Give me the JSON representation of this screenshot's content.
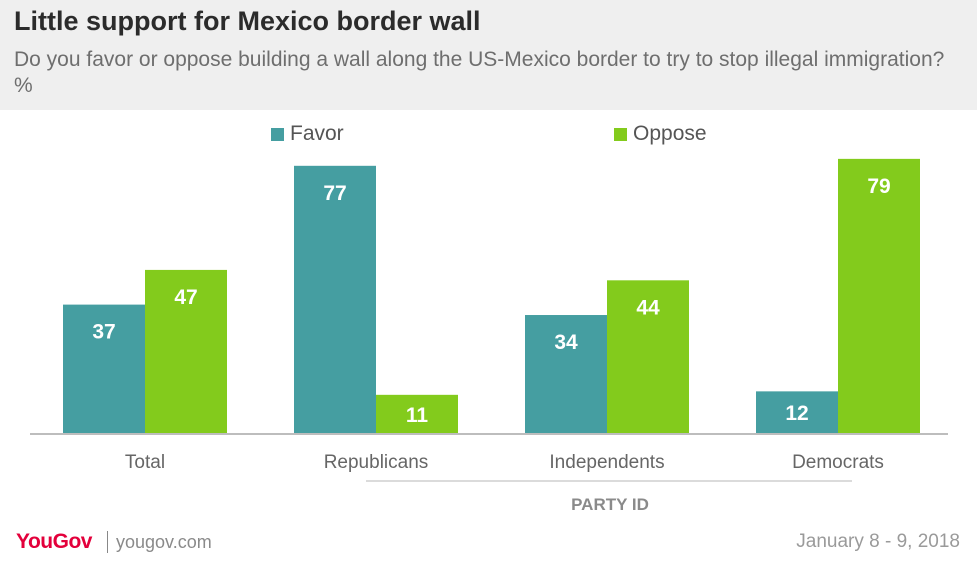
{
  "header": {
    "title": "Little support for Mexico border wall",
    "subtitle": "Do you favor or oppose building a wall along the US-Mexico border to try to stop illegal immigration? %"
  },
  "footer": {
    "brand": "YouGov",
    "site": "yougov.com",
    "date": "January 8 - 9, 2018"
  },
  "colors": {
    "favor": "#459ea1",
    "oppose": "#83cb1c"
  },
  "chart_data": {
    "type": "bar",
    "title": "Little support for Mexico border wall",
    "subtitle": "Do you favor or oppose building a wall along the US-Mexico border to try to stop illegal immigration? %",
    "categories": [
      "Total",
      "Republicans",
      "Independents",
      "Democrats"
    ],
    "series": [
      {
        "name": "Favor",
        "values": [
          37,
          77,
          34,
          12
        ]
      },
      {
        "name": "Oppose",
        "values": [
          47,
          11,
          44,
          79
        ]
      }
    ],
    "group_label": "PARTY ID",
    "ylim": [
      0,
      80
    ],
    "grid": false,
    "legend": "top-center"
  }
}
